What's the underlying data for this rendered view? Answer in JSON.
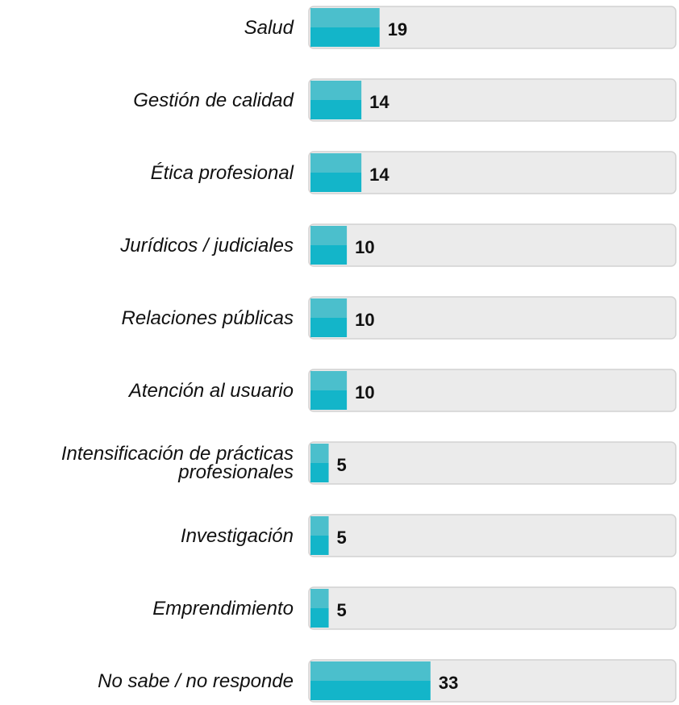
{
  "chart_data": {
    "type": "hbar",
    "categories": [
      "Salud",
      "Gestión de calidad",
      "Ética profesional",
      "Jurídicos / judiciales",
      "Relaciones públicas",
      "Atención al usuario",
      "Intensificación de prácticas profesionales",
      "Investigación",
      "Emprendimiento",
      "No sabe / no responde"
    ],
    "values": [
      19,
      14,
      14,
      10,
      10,
      10,
      5,
      5,
      5,
      33
    ],
    "color": "#13b5c9",
    "highlight_color": "#4bbfcc",
    "track_color": "#ebebeb",
    "xlim": [
      0,
      100
    ]
  }
}
